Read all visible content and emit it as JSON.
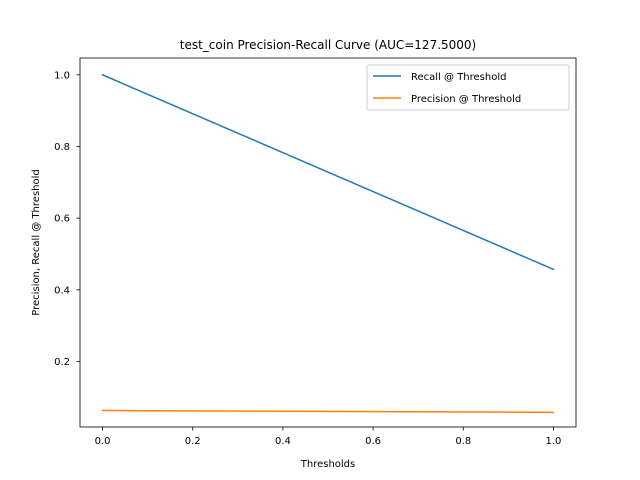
{
  "chart_data": {
    "type": "line",
    "title": "test_coin Precision-Recall Curve (AUC=127.5000)",
    "xlabel": "Thresholds",
    "ylabel": "Precision, Recall @ Threshold",
    "xlim": [
      -0.05,
      1.05
    ],
    "ylim": [
      0.017,
      1.047
    ],
    "xticks": [
      "0.0",
      "0.2",
      "0.4",
      "0.6",
      "0.8",
      "1.0"
    ],
    "yticks": [
      "0.2",
      "0.4",
      "0.6",
      "0.8",
      "1.0"
    ],
    "grid": false,
    "legend_position": "top-right",
    "series": [
      {
        "name": "Recall @ Threshold",
        "color": "#1f77b4",
        "x": [
          0.0,
          1.0
        ],
        "y": [
          1.0,
          0.457
        ]
      },
      {
        "name": "Precision @ Threshold",
        "color": "#ff7f0e",
        "x": [
          0.0,
          1.0
        ],
        "y": [
          0.063,
          0.058
        ]
      }
    ]
  }
}
